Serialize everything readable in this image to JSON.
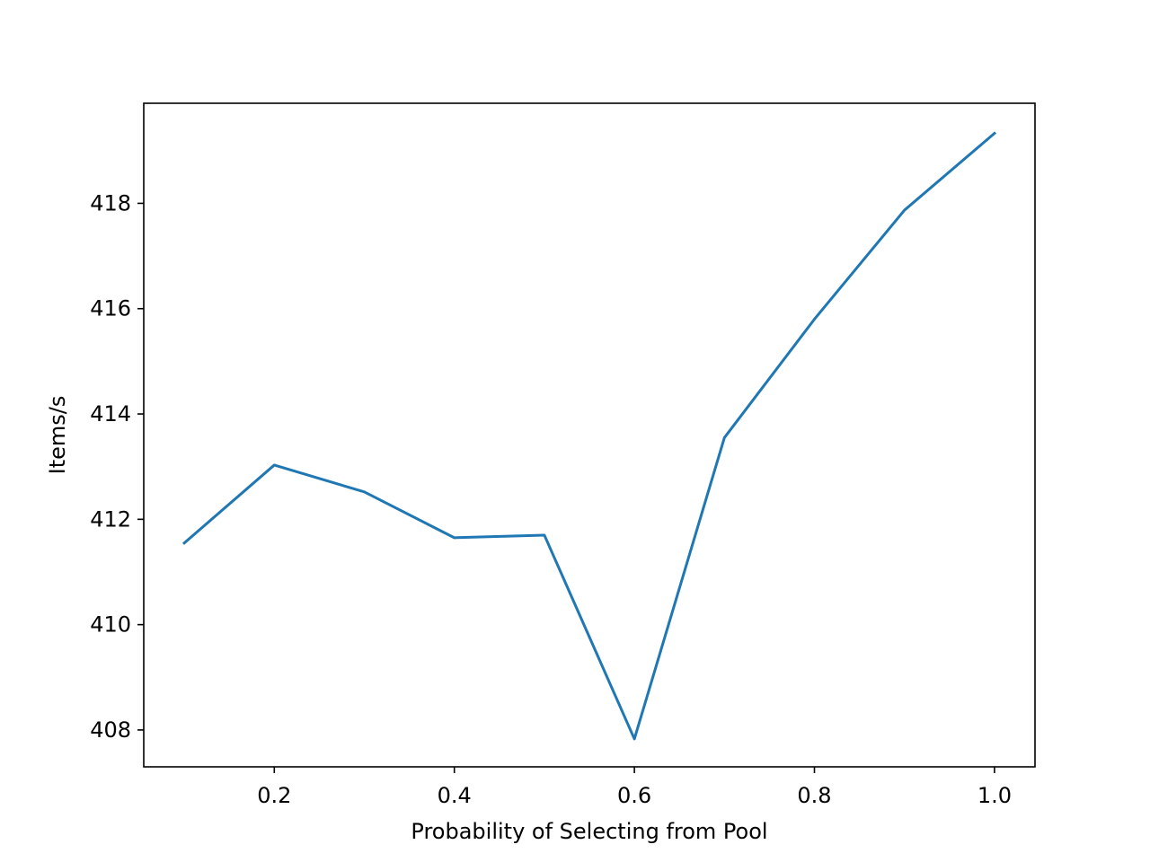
{
  "chart_data": {
    "type": "line",
    "title": "",
    "xlabel": "Probability of Selecting from Pool",
    "ylabel": "Items/s",
    "xlim": [
      0.055,
      1.045
    ],
    "ylim": [
      407.3,
      419.9
    ],
    "xticks": [
      0.2,
      0.4,
      0.6,
      0.8,
      1.0
    ],
    "xtick_labels": [
      "0.2",
      "0.4",
      "0.6",
      "0.8",
      "1.0"
    ],
    "yticks": [
      408,
      410,
      412,
      414,
      416,
      418
    ],
    "ytick_labels": [
      "408",
      "410",
      "412",
      "414",
      "416",
      "418"
    ],
    "grid": false,
    "series": [
      {
        "color": "#1f77b4",
        "x": [
          0.1,
          0.2,
          0.3,
          0.4,
          0.5,
          0.6,
          0.7,
          0.8,
          0.9,
          1.0
        ],
        "y": [
          411.55,
          413.03,
          412.52,
          411.65,
          411.7,
          407.83,
          413.55,
          415.8,
          417.87,
          419.33
        ]
      }
    ]
  }
}
